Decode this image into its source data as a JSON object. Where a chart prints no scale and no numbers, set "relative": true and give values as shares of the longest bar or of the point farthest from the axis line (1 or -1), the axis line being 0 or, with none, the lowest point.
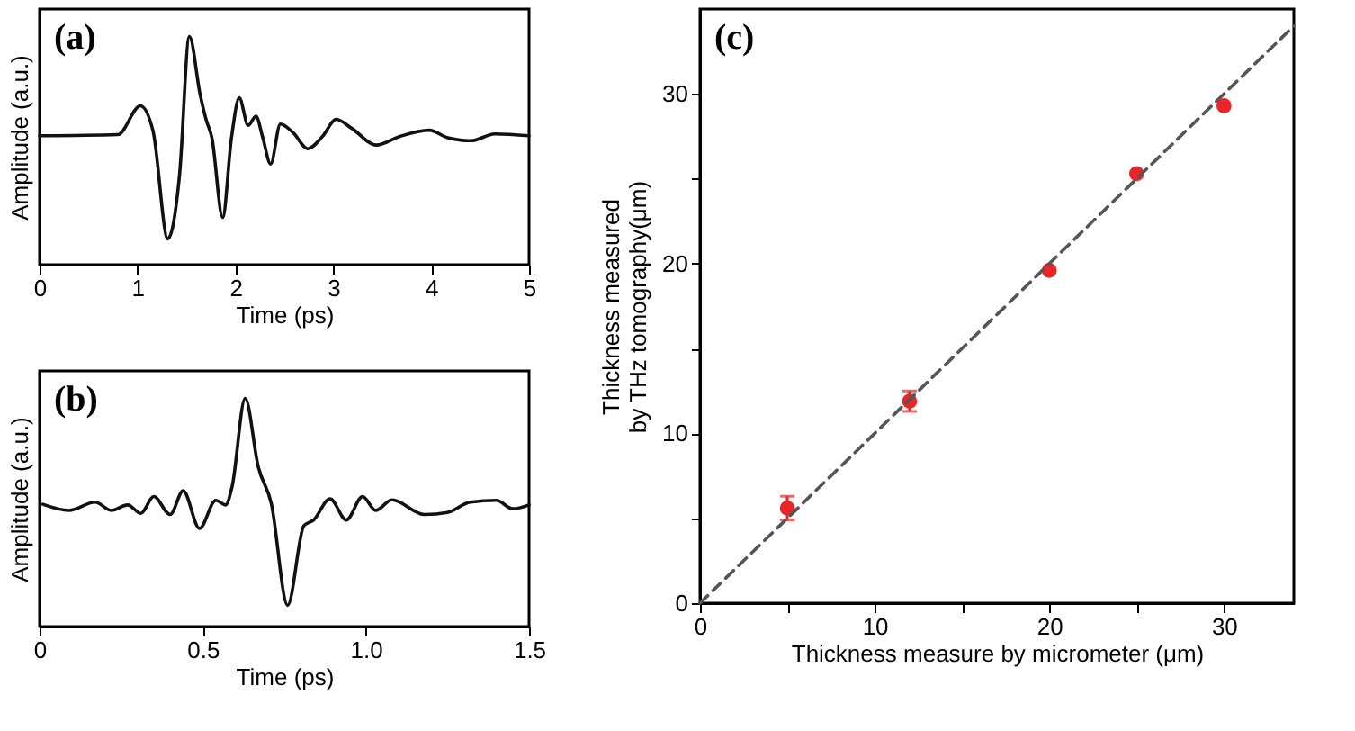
{
  "chart_data": [
    {
      "type": "line",
      "relative": true,
      "xlabel": "Time (ps)",
      "ylabel": "Amplitude (a.u.)",
      "xlim": [
        0,
        5
      ],
      "xticks": [
        0,
        1,
        2,
        3,
        4,
        5
      ],
      "tick_labels": "x",
      "grid": false,
      "annotations": [
        "(a)"
      ],
      "series": [
        {
          "color": "#111111",
          "x": [
            0,
            0.8,
            1.03,
            1.16,
            1.31,
            1.43,
            1.53,
            1.64,
            1.7,
            1.76,
            1.87,
            1.96,
            2.04,
            2.13,
            2.21,
            2.28,
            2.36,
            2.46,
            2.59,
            2.74,
            2.89,
            3.03,
            3.19,
            3.44,
            3.68,
            3.98,
            4.17,
            4.41,
            4.65,
            5
          ],
          "values": [
            0.565,
            0.57,
            0.696,
            0.583,
            0.113,
            0.395,
            1.0,
            0.745,
            0.637,
            0.556,
            0.207,
            0.556,
            0.731,
            0.61,
            0.651,
            0.556,
            0.441,
            0.616,
            0.578,
            0.508,
            0.562,
            0.637,
            0.597,
            0.524,
            0.562,
            0.589,
            0.556,
            0.543,
            0.573,
            0.565
          ]
        }
      ]
    },
    {
      "type": "line",
      "relative": true,
      "xlabel": "Time (ps)",
      "ylabel": "Amplitude (a.u.)",
      "xlim": [
        0,
        1.5
      ],
      "xticks": [
        0,
        0.5,
        {
          "value": 1,
          "label": "1.0"
        },
        1.5
      ],
      "tick_labels": "x",
      "grid": false,
      "annotations": [
        "(b)"
      ],
      "series": [
        {
          "color": "#111111",
          "x": [
            0.01,
            0.09,
            0.17,
            0.22,
            0.27,
            0.31,
            0.35,
            0.4,
            0.44,
            0.49,
            0.54,
            0.57,
            0.59,
            0.63,
            0.67,
            0.71,
            0.76,
            0.81,
            0.84,
            0.89,
            0.94,
            0.99,
            1.03,
            1.08,
            1.18,
            1.25,
            1.32,
            1.4,
            1.45,
            1.5
          ],
          "values": [
            0.536,
            0.509,
            0.545,
            0.509,
            0.533,
            0.496,
            0.57,
            0.491,
            0.595,
            0.43,
            0.553,
            0.533,
            0.614,
            1.0,
            0.7,
            0.54,
            0.093,
            0.442,
            0.467,
            0.56,
            0.467,
            0.57,
            0.509,
            0.555,
            0.491,
            0.5,
            0.545,
            0.553,
            0.516,
            0.533
          ]
        }
      ]
    },
    {
      "type": "scatter",
      "xlabel": "Thickness measure by micrometer (μm)",
      "ylabel": "Thickness measured\nby THz tomography(μm)",
      "xlim": [
        0,
        34
      ],
      "xticks": [
        0,
        {
          "value": 5,
          "label": null
        },
        10,
        {
          "value": 15,
          "label": null
        },
        20,
        {
          "value": 25,
          "label": null
        },
        30
      ],
      "ylim": [
        0,
        35
      ],
      "yticks": [
        0,
        {
          "value": 5,
          "label": null
        },
        10,
        {
          "value": 15,
          "label": null
        },
        20,
        {
          "value": 25,
          "label": null
        },
        30
      ],
      "grid": false,
      "annotations": [
        "(c)"
      ],
      "series": [
        {
          "color": "#e8262a",
          "marker": "circle",
          "x": [
            5,
            12,
            20,
            25,
            30
          ],
          "values": [
            5.6,
            11.9,
            19.6,
            25.3,
            29.3
          ],
          "errors": [
            0.7,
            0.6,
            null,
            null,
            null
          ]
        },
        {
          "type": "line",
          "color": "#555555",
          "line_style": "dashed",
          "x": [
            0,
            34
          ],
          "values": [
            0,
            34
          ]
        }
      ]
    }
  ]
}
